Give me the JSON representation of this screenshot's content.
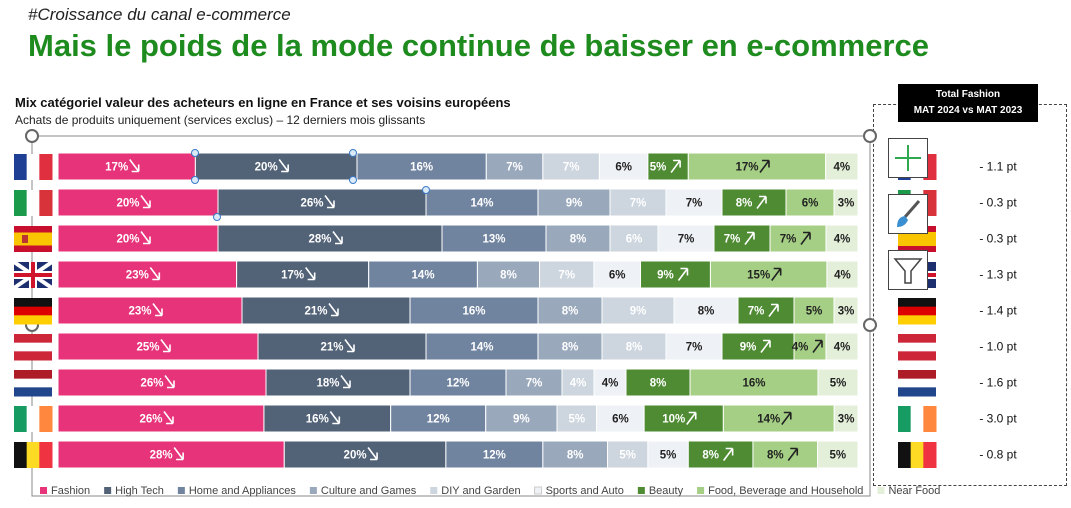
{
  "header": {
    "tag": "#Croissance du canal e-commerce",
    "title": "Mais le poids de la mode continue de baisser en e-commerce",
    "subtitle": "Mix catégoriel valeur des acheteurs en ligne en France et ses voisins européens",
    "subtitle2": "Achats de produits uniquement (services exclus) – 12 derniers mois glissants"
  },
  "total_fashion": {
    "line1": "Total Fashion",
    "line2": "MAT 2024 vs MAT 2023"
  },
  "icons": {
    "add": "plus-icon",
    "brush": "brush-icon",
    "filter": "filter-icon"
  },
  "chart_data": {
    "type": "bar",
    "orientation": "horizontal-stacked-100",
    "countries": [
      "France",
      "Italy",
      "Spain",
      "United Kingdom",
      "Germany",
      "Austria",
      "Netherlands",
      "Ireland",
      "Belgium"
    ],
    "series": [
      {
        "name": "Fashion",
        "color": "#e6337a",
        "text": "#ffffff",
        "values": [
          17,
          20,
          20,
          23,
          23,
          25,
          26,
          26,
          28
        ],
        "trend": [
          "down",
          "down",
          "down",
          "down",
          "down",
          "down",
          "down",
          "down",
          "down"
        ]
      },
      {
        "name": "High Tech",
        "color": "#526277",
        "text": "#ffffff",
        "values": [
          20,
          26,
          28,
          17,
          21,
          21,
          18,
          16,
          20
        ],
        "trend": [
          "down",
          "down",
          "down",
          "down",
          "down",
          "down",
          "down",
          "down",
          "down"
        ]
      },
      {
        "name": "Home and Appliances",
        "color": "#7084a0",
        "text": "#ffffff",
        "values": [
          16,
          14,
          13,
          14,
          16,
          14,
          12,
          12,
          12
        ],
        "trend": [
          "",
          "",
          "",
          "",
          "",
          "",
          "",
          "",
          ""
        ]
      },
      {
        "name": "Culture and Games",
        "color": "#9aa8bc",
        "text": "#ffffff",
        "values": [
          7,
          9,
          8,
          8,
          8,
          8,
          7,
          9,
          8
        ],
        "trend": [
          "",
          "",
          "",
          "",
          "",
          "",
          "",
          "",
          ""
        ]
      },
      {
        "name": "DIY and Garden",
        "color": "#cdd5df",
        "text": "#ffffff",
        "values": [
          7,
          7,
          6,
          7,
          9,
          8,
          4,
          5,
          5
        ],
        "trend": [
          "",
          "",
          "",
          "",
          "",
          "",
          "",
          "",
          ""
        ]
      },
      {
        "name": "Sports and Auto",
        "color": "#eef1f5",
        "text": "#222222",
        "values": [
          6,
          7,
          7,
          6,
          8,
          7,
          4,
          6,
          5
        ],
        "trend": [
          "",
          "",
          "",
          "",
          "",
          "",
          "",
          "",
          ""
        ]
      },
      {
        "name": "Beauty",
        "color": "#4e8b32",
        "text": "#ffffff",
        "values": [
          5,
          8,
          7,
          9,
          7,
          9,
          8,
          10,
          8
        ],
        "trend": [
          "up",
          "up",
          "up",
          "up",
          "up",
          "up",
          "",
          "up",
          "up"
        ]
      },
      {
        "name": "Food, Beverage and Household",
        "color": "#a4cf84",
        "text": "#222222",
        "values": [
          17,
          6,
          7,
          15,
          5,
          4,
          16,
          14,
          8
        ],
        "trend": [
          "up",
          "",
          "up",
          "up",
          "",
          "up",
          "",
          "up",
          "up"
        ]
      },
      {
        "name": "Near Food",
        "color": "#e3efd9",
        "text": "#222222",
        "values": [
          4,
          3,
          4,
          4,
          3,
          4,
          5,
          3,
          5
        ],
        "trend": [
          "",
          "",
          "",
          "",
          "",
          "",
          "",
          "",
          ""
        ]
      }
    ],
    "deltas": [
      "- 1.1 pt",
      "- 0.3 pt",
      "- 0.3 pt",
      "- 1.3 pt",
      "- 1.4 pt",
      "- 1.0 pt",
      "- 1.6 pt",
      "- 3.0 pt",
      "- 0.8 pt"
    ],
    "flags": [
      {
        "kind": "v",
        "colors": [
          "#1f3f95",
          "#ffffff",
          "#e03040"
        ]
      },
      {
        "kind": "v",
        "colors": [
          "#1a9a4a",
          "#ffffff",
          "#d8323b"
        ]
      },
      {
        "kind": "es",
        "colors": [
          "#c8102e",
          "#f9c400",
          "#c8102e"
        ]
      },
      {
        "kind": "uk",
        "colors": [
          "#1d2f6e",
          "#ffffff",
          "#cf142b"
        ]
      },
      {
        "kind": "h",
        "colors": [
          "#111111",
          "#dd0000",
          "#ffce00"
        ]
      },
      {
        "kind": "h",
        "colors": [
          "#ce2639",
          "#ffffff",
          "#ce2639"
        ]
      },
      {
        "kind": "h",
        "colors": [
          "#ae1c28",
          "#ffffff",
          "#21468b"
        ]
      },
      {
        "kind": "v",
        "colors": [
          "#169b62",
          "#ffffff",
          "#ff883e"
        ]
      },
      {
        "kind": "v",
        "colors": [
          "#111111",
          "#fdda24",
          "#ef3340"
        ]
      }
    ]
  }
}
